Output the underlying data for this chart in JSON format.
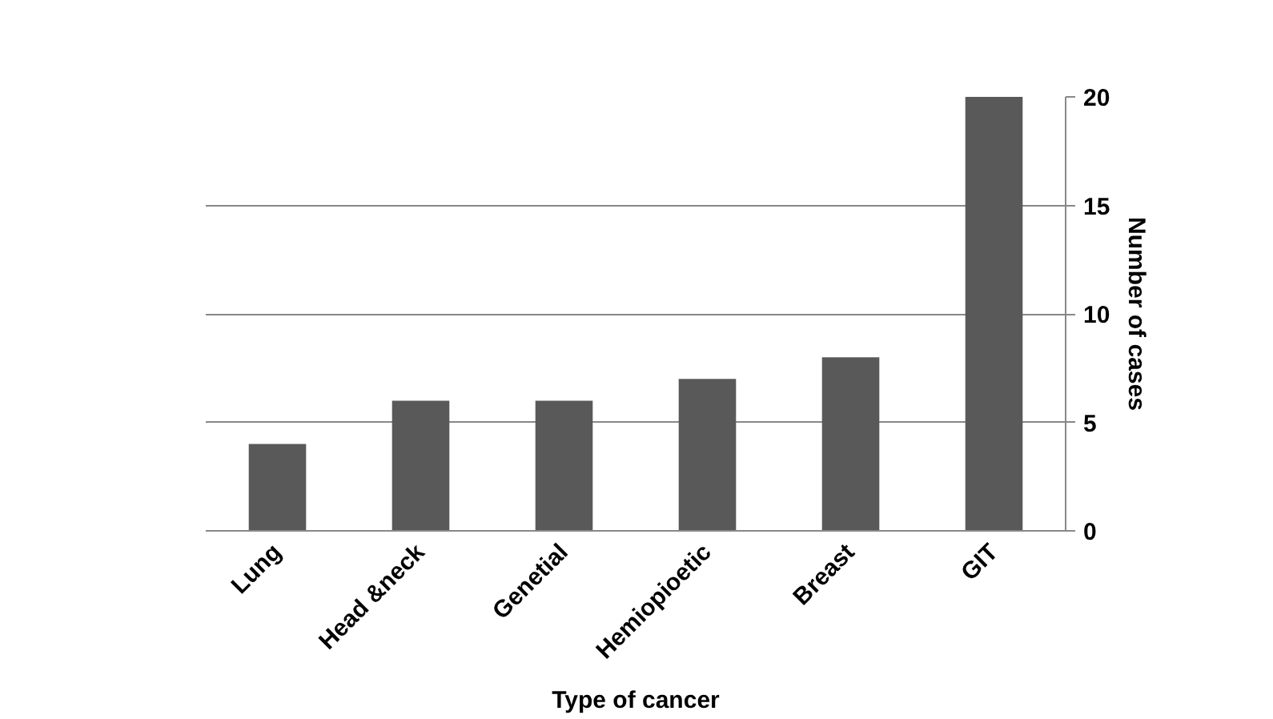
{
  "chart_data": {
    "type": "bar",
    "xlabel": "Type of cancer",
    "ylabel": "Number of cases",
    "categories": [
      "Lung",
      "Head &neck",
      "Genetial",
      "Hemiopioetic",
      "Breast",
      "GIT"
    ],
    "values": [
      4,
      6,
      6,
      7,
      8,
      20
    ],
    "color": "#595959",
    "ylim": [
      0,
      20
    ],
    "yticks": [
      0,
      5,
      10,
      15,
      20
    ],
    "grid": "y"
  }
}
